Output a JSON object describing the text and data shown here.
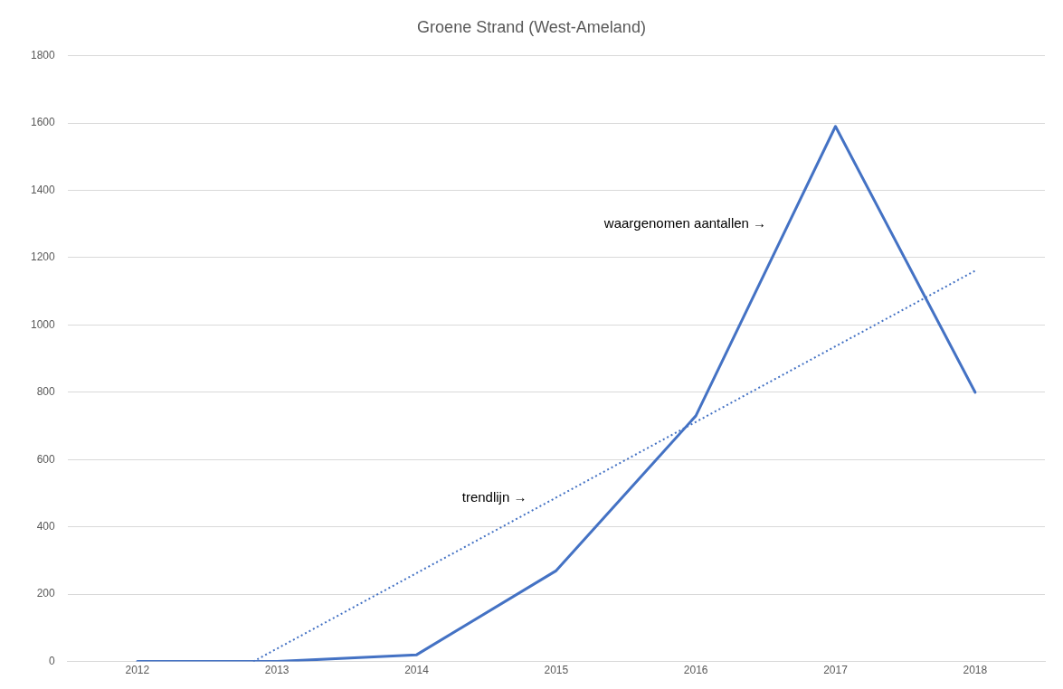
{
  "chart_data": {
    "type": "line",
    "title": "Groene Strand (West-Ameland)",
    "x": [
      2012,
      2013,
      2014,
      2015,
      2016,
      2017,
      2018
    ],
    "series": [
      {
        "type": "line",
        "color": "#4472c4",
        "values": [
          0,
          0,
          20,
          270,
          730,
          1590,
          800
        ],
        "line_style": "solid"
      },
      {
        "type": "line",
        "color": "#4472c4",
        "x": [
          2012.83,
          2018
        ],
        "values": [
          0,
          1161
        ],
        "line_style": "dotted"
      }
    ],
    "xlim": [
      2011.5,
      2018.5
    ],
    "xticks": [
      2012,
      2013,
      2014,
      2015,
      2016,
      2017,
      2018
    ],
    "ylim": [
      0,
      1800
    ],
    "yticks": [
      0,
      200,
      400,
      600,
      800,
      1000,
      1200,
      1400,
      1600,
      1800
    ],
    "grid": "y",
    "legend": false,
    "marker": "none",
    "annotations": [
      "waargenomen aantallen →",
      "trendlijn →"
    ]
  }
}
